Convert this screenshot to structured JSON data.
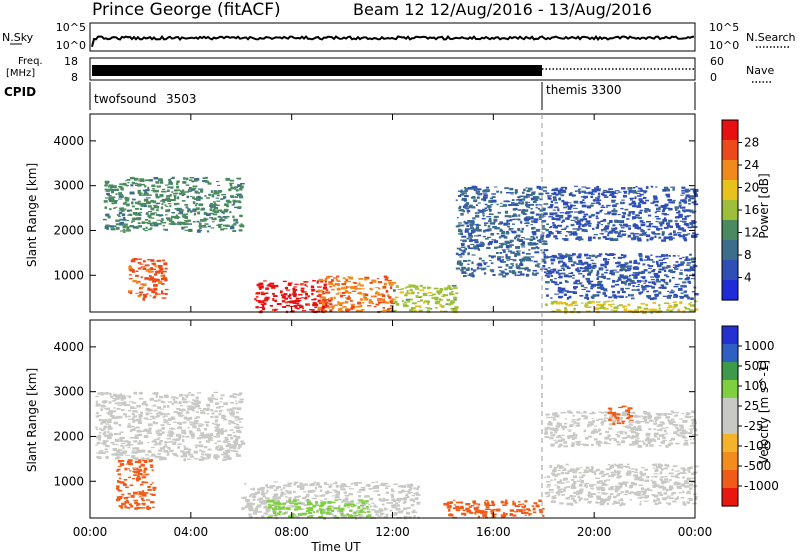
{
  "header": {
    "site": "Prince George (fitACF)",
    "beam_info": "Beam 12  12/Aug/2016 - 13/Aug/2016"
  },
  "strip_labels": {
    "nsky": "N.Sky",
    "nsearch": "N.Search",
    "freq_line1": "Freq.",
    "freq_line2": "[MHz]",
    "nave": "Nave",
    "cpid": "CPID"
  },
  "noise_axis": {
    "left_ticks": [
      "10^5",
      "10^0"
    ],
    "right_ticks": [
      "10^5",
      "10^0"
    ]
  },
  "freq_axis": {
    "left_ticks": [
      "18",
      "8"
    ],
    "right_ticks": [
      "60",
      "0"
    ]
  },
  "cpid_segments": [
    {
      "name": "twofsound",
      "id": "3503",
      "start_hour": 0,
      "end_hour": 18
    },
    {
      "name": "themis",
      "id": "3300",
      "start_hour": 18,
      "end_hour": 24
    }
  ],
  "time_axis": {
    "label": "Time UT",
    "ticks": [
      "00:00",
      "04:00",
      "08:00",
      "12:00",
      "16:00",
      "20:00",
      "00:00"
    ],
    "start_hour": 0,
    "end_hour": 24
  },
  "colors": {
    "power_scale": [
      "#1f2bd8",
      "#2f4fb5",
      "#3c6e8c",
      "#4b8a5e",
      "#9dbf3a",
      "#e8c11c",
      "#f08a1c",
      "#ec4a1a",
      "#e81010"
    ],
    "velocity_scale": [
      "#e8180e",
      "#f05c18",
      "#f28c1c",
      "#f5b32c",
      "#c8c8c4",
      "#c8c8c4",
      "#7fd040",
      "#3c9a4a",
      "#2f5fc2",
      "#2430d0"
    ]
  },
  "chart_data": [
    {
      "type": "heatmap",
      "title": "Power",
      "ylabel": "Slant Range [km]",
      "xlabel": "",
      "colorbar_label": "Power [dB]",
      "colorbar_ticks": [
        "28",
        "24",
        "20",
        "16",
        "12",
        "8",
        "4"
      ],
      "x_range_hours": [
        0,
        24
      ],
      "ylim": [
        180,
        4600
      ],
      "y_ticks": [
        "4000",
        "3000",
        "2000",
        "1000"
      ],
      "regions": [
        {
          "x": [
            0.5,
            6
          ],
          "y": [
            2000,
            3200
          ],
          "level": 10
        },
        {
          "x": [
            1.5,
            3
          ],
          "y": [
            500,
            1400
          ],
          "level": 24
        },
        {
          "x": [
            6.5,
            9.5
          ],
          "y": [
            200,
            900
          ],
          "level": 28
        },
        {
          "x": [
            9,
            12
          ],
          "y": [
            200,
            1000
          ],
          "level": 22
        },
        {
          "x": [
            12,
            14.5
          ],
          "y": [
            200,
            800
          ],
          "level": 14
        },
        {
          "x": [
            14.5,
            18
          ],
          "y": [
            1000,
            3000
          ],
          "level": 6
        },
        {
          "x": [
            18,
            24
          ],
          "y": [
            500,
            1500
          ],
          "level": 4
        },
        {
          "x": [
            18,
            24
          ],
          "y": [
            1800,
            3000
          ],
          "level": 4
        },
        {
          "x": [
            18,
            24
          ],
          "y": [
            200,
            450
          ],
          "level": 16
        }
      ]
    },
    {
      "type": "heatmap",
      "title": "Velocity",
      "ylabel": "Slant Range [km]",
      "xlabel": "Time UT",
      "colorbar_label": "Velocity [m s^-1]",
      "colorbar_ticks": [
        "1000",
        "500",
        "100",
        "25",
        "-25",
        "-100",
        "-500",
        "-1000"
      ],
      "x_range_hours": [
        0,
        24
      ],
      "ylim": [
        180,
        4600
      ],
      "y_ticks": [
        "4000",
        "3000",
        "2000",
        "1000"
      ],
      "regions": [
        {
          "x": [
            0.2,
            6
          ],
          "y": [
            1500,
            3000
          ],
          "level": 0
        },
        {
          "x": [
            1,
            2.5
          ],
          "y": [
            400,
            1500
          ],
          "level": -300
        },
        {
          "x": [
            6,
            13
          ],
          "y": [
            200,
            1000
          ],
          "level": 10
        },
        {
          "x": [
            7,
            11
          ],
          "y": [
            200,
            600
          ],
          "level": 80
        },
        {
          "x": [
            14,
            18
          ],
          "y": [
            200,
            600
          ],
          "level": -100
        },
        {
          "x": [
            18,
            24
          ],
          "y": [
            500,
            1400
          ],
          "level": 0
        },
        {
          "x": [
            18,
            24
          ],
          "y": [
            1800,
            2600
          ],
          "level": 0
        },
        {
          "x": [
            20.5,
            21.5
          ],
          "y": [
            2300,
            2700
          ],
          "level": -300
        }
      ]
    }
  ]
}
